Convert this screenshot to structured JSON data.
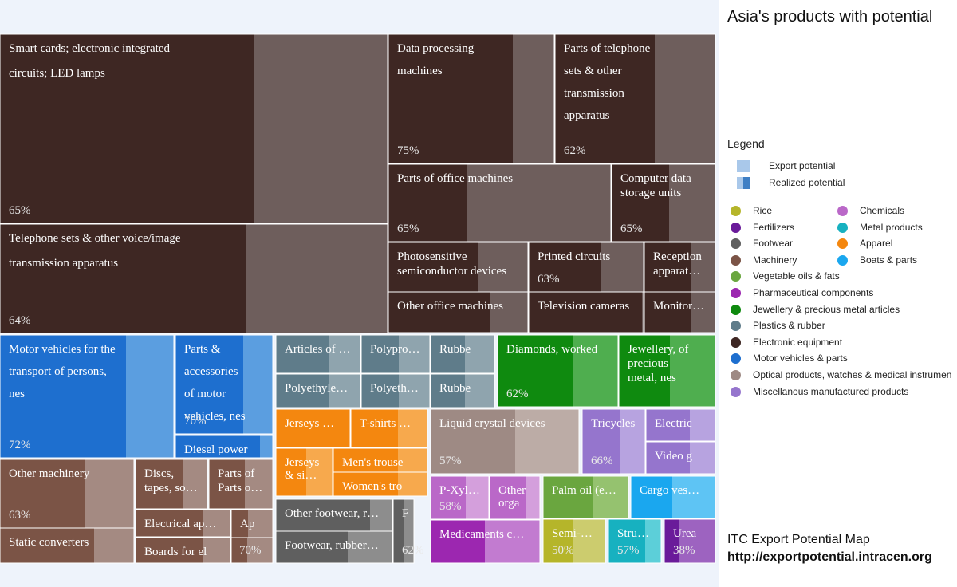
{
  "title": "Asia's products with potential",
  "legend": {
    "heading": "Legend",
    "export_potential": "Export potential",
    "realized_potential": "Realized potential",
    "categories": [
      {
        "name": "Rice",
        "color": "#b5b52a"
      },
      {
        "name": "Fertilizers",
        "color": "#6a1b9a"
      },
      {
        "name": "Footwear",
        "color": "#5f5f5f"
      },
      {
        "name": "Machinery",
        "color": "#7b5446"
      },
      {
        "name": "Vegetable oils & fats",
        "color": "#6aa63f"
      },
      {
        "name": "Pharmaceutical components",
        "color": "#9c27b0"
      },
      {
        "name": "Jewellery & precious metal articles",
        "color": "#0f8a0f"
      },
      {
        "name": "Plastics & rubber",
        "color": "#5f7c8a"
      },
      {
        "name": "Electronic equipment",
        "color": "#3e2723"
      },
      {
        "name": "Motor vehicles & parts",
        "color": "#1e6fcf"
      },
      {
        "name": "Optical products, watches & medical instrumen",
        "color": "#9e8a84"
      },
      {
        "name": "Miscellanous manufactured products",
        "color": "#9575cd"
      },
      {
        "name": "Chemicals",
        "color": "#ba68c8"
      },
      {
        "name": "Metal products",
        "color": "#17b1c0"
      },
      {
        "name": "Apparel",
        "color": "#f4870f"
      },
      {
        "name": "Boats & parts",
        "color": "#1aa7ef"
      }
    ]
  },
  "footer": {
    "line1": "ITC Export Potential Map",
    "line2": "http://exportpotential.intracen.org"
  },
  "chart_data": {
    "type": "treemap",
    "title": "Asia's products with potential",
    "tiles": [
      {
        "label": "Smart cards; electronic integrated circuits; LED lamps",
        "text": [
          "Smart cards; electronic integrated",
          "circuits; LED lamps"
        ],
        "realized": "65%",
        "category": "Electronic equipment"
      },
      {
        "label": "Telephone sets & other voice/image transmission apparatus",
        "text": [
          "Telephone sets & other voice/image",
          "transmission apparatus"
        ],
        "realized": "64%",
        "category": "Electronic equipment"
      },
      {
        "label": "Data processing machines",
        "text": [
          "Data processing",
          "machines"
        ],
        "realized": "75%",
        "category": "Electronic equipment"
      },
      {
        "label": "Parts of telephone sets & other transmission apparatus",
        "text": [
          "Parts of telephone",
          "sets & other",
          "transmission",
          "apparatus"
        ],
        "realized": "62%",
        "category": "Electronic equipment"
      },
      {
        "label": "Parts of office machines",
        "text": [
          "Parts of office machines"
        ],
        "realized": "65%",
        "category": "Electronic equipment"
      },
      {
        "label": "Computer data storage units",
        "text": [
          "Computer data",
          "storage units"
        ],
        "realized": "65%",
        "category": "Electronic equipment"
      },
      {
        "label": "Photosensitive semiconductor devices",
        "text": [
          "Photosensitive",
          "semiconductor devices"
        ],
        "realized": "",
        "category": "Electronic equipment"
      },
      {
        "label": "Printed circuits",
        "text": [
          "Printed circuits"
        ],
        "realized": "63%",
        "category": "Electronic equipment"
      },
      {
        "label": "Reception apparat…",
        "text": [
          "Reception",
          "apparat…"
        ],
        "realized": "",
        "category": "Electronic equipment"
      },
      {
        "label": "Other office machines",
        "text": [
          "Other office machines"
        ],
        "realized": "",
        "category": "Electronic equipment"
      },
      {
        "label": "Television cameras",
        "text": [
          "Television cameras"
        ],
        "realized": "",
        "category": "Electronic equipment"
      },
      {
        "label": "Monitor…",
        "text": [
          "Monitor…"
        ],
        "realized": "",
        "category": "Electronic equipment"
      },
      {
        "label": "Motor vehicles for the transport of persons, nes",
        "text": [
          "Motor vehicles for the",
          "transport of persons,",
          "nes"
        ],
        "realized": "72%",
        "category": "Motor vehicles & parts"
      },
      {
        "label": "Parts & accessories of motor vehicles, nes",
        "text": [
          "Parts &",
          "accessories",
          "of motor",
          "vehicles, nes"
        ],
        "realized": "70%",
        "category": "Motor vehicles & parts"
      },
      {
        "label": "Diesel power",
        "text": [
          "Diesel power"
        ],
        "realized": "",
        "category": "Motor vehicles & parts"
      },
      {
        "label": "Articles of …",
        "text": [
          "Articles of …"
        ],
        "realized": "",
        "category": "Plastics & rubber"
      },
      {
        "label": "Polypro…",
        "text": [
          "Polypro…"
        ],
        "realized": "",
        "category": "Plastics & rubber"
      },
      {
        "label": "Rubbe",
        "text": [
          "Rubbe"
        ],
        "realized": "",
        "category": "Plastics & rubber"
      },
      {
        "label": "Polyethyle…",
        "text": [
          "Polyethyle…"
        ],
        "realized": "",
        "category": "Plastics & rubber"
      },
      {
        "label": "Polyeth…",
        "text": [
          "Polyeth…"
        ],
        "realized": "",
        "category": "Plastics & rubber"
      },
      {
        "label": "Rubbe",
        "text": [
          "Rubbe"
        ],
        "realized": "",
        "category": "Plastics & rubber"
      },
      {
        "label": "Diamonds, worked",
        "text": [
          "Diamonds, worked"
        ],
        "realized": "62%",
        "category": "Jewellery & precious metal articles"
      },
      {
        "label": "Jewellery, of precious metal, nes",
        "text": [
          "Jewellery, of",
          "precious",
          "metal, nes"
        ],
        "realized": "",
        "category": "Jewellery & precious metal articles"
      },
      {
        "label": "Jerseys …",
        "text": [
          "Jerseys …"
        ],
        "realized": "",
        "category": "Apparel"
      },
      {
        "label": "T-shirts …",
        "text": [
          "T-shirts …"
        ],
        "realized": "",
        "category": "Apparel"
      },
      {
        "label": "Jerseys & si…",
        "text": [
          "Jerseys",
          "& si…"
        ],
        "realized": "",
        "category": "Apparel"
      },
      {
        "label": "Men's trouse",
        "text": [
          "Men's trouse"
        ],
        "realized": "",
        "category": "Apparel"
      },
      {
        "label": "Women's tro",
        "text": [
          "Women's tro"
        ],
        "realized": "",
        "category": "Apparel"
      },
      {
        "label": "Liquid crystal devices",
        "text": [
          "Liquid crystal devices"
        ],
        "realized": "57%",
        "category": "Optical products, watches & medical instrumen"
      },
      {
        "label": "Tricycles",
        "text": [
          "Tricycles"
        ],
        "realized": "66%",
        "category": "Miscellanous manufactured products"
      },
      {
        "label": "Electric",
        "text": [
          "Electric"
        ],
        "realized": "",
        "category": "Miscellanous manufactured products"
      },
      {
        "label": "Video g",
        "text": [
          "Video g"
        ],
        "realized": "",
        "category": "Miscellanous manufactured products"
      },
      {
        "label": "Other machinery",
        "text": [
          "Other machinery"
        ],
        "realized": "63%",
        "category": "Machinery"
      },
      {
        "label": "Static converters",
        "text": [
          "Static converters"
        ],
        "realized": "",
        "category": "Machinery"
      },
      {
        "label": "Discs, tapes, so…",
        "text": [
          "Discs,",
          "tapes, so…"
        ],
        "realized": "",
        "category": "Machinery"
      },
      {
        "label": "Parts of Parts o…",
        "text": [
          "Parts of",
          "Parts o…"
        ],
        "realized": "",
        "category": "Machinery"
      },
      {
        "label": "Electrical ap…",
        "text": [
          "Electrical ap…"
        ],
        "realized": "",
        "category": "Machinery"
      },
      {
        "label": "Ap",
        "text": [
          "Ap"
        ],
        "realized": "",
        "category": "Machinery"
      },
      {
        "label": "Boards for el",
        "text": [
          "Boards for el"
        ],
        "realized": "",
        "category": "Machinery"
      },
      {
        "label": "70%",
        "text": [],
        "realized": "70%",
        "category": "Machinery"
      },
      {
        "label": "Other footwear, r…",
        "text": [
          "Other footwear, r…"
        ],
        "realized": "",
        "category": "Footwear"
      },
      {
        "label": "Footwear, rubber…",
        "text": [
          "Footwear, rubber…"
        ],
        "realized": "",
        "category": "Footwear"
      },
      {
        "label": "F",
        "text": [
          "F"
        ],
        "realized": "62%",
        "category": "Footwear"
      },
      {
        "label": "P-Xyl…",
        "text": [
          "P-Xyl…"
        ],
        "realized": "58%",
        "category": "Chemicals"
      },
      {
        "label": "Other orga",
        "text": [
          "Other",
          "orga"
        ],
        "realized": "",
        "category": "Chemicals"
      },
      {
        "label": "Medicaments c…",
        "text": [
          "Medicaments c…"
        ],
        "realized": "",
        "category": "Pharmaceutical components"
      },
      {
        "label": "Palm oil (e…",
        "text": [
          "Palm oil (e…"
        ],
        "realized": "",
        "category": "Vegetable oils & fats"
      },
      {
        "label": "Cargo ves…",
        "text": [
          "Cargo ves…"
        ],
        "realized": "",
        "category": "Boats & parts"
      },
      {
        "label": "Semi-…",
        "text": [
          "Semi-…"
        ],
        "realized": "50%",
        "category": "Rice"
      },
      {
        "label": "Stru…",
        "text": [
          "Stru…"
        ],
        "realized": "57%",
        "category": "Metal products"
      },
      {
        "label": "Urea",
        "text": [
          "Urea"
        ],
        "realized": "38%",
        "category": "Fertilizers"
      }
    ]
  }
}
